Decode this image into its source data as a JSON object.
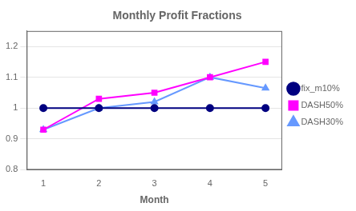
{
  "chart_data": {
    "type": "line",
    "title": "Monthly Profit Fractions",
    "xlabel": "Month",
    "x": [
      1,
      2,
      3,
      4,
      5
    ],
    "series": [
      {
        "name": "fix_m10%",
        "color": "#000080",
        "marker": "circle",
        "values": [
          1.0,
          1.0,
          1.0,
          1.0,
          1.0
        ]
      },
      {
        "name": "DASH50%",
        "color": "#FF00FF",
        "marker": "square",
        "values": [
          0.93,
          1.03,
          1.05,
          1.1,
          1.15
        ]
      },
      {
        "name": "DASH30%",
        "color": "#6699FF",
        "marker": "triangle",
        "values": [
          0.93,
          1.0,
          1.02,
          1.1,
          1.065
        ]
      }
    ],
    "xlim": [
      0.7,
      5.3
    ],
    "xticks": [
      1,
      2,
      3,
      4,
      5
    ],
    "ylim": [
      0.8,
      1.25
    ],
    "yticks": [
      0.8,
      0.9,
      1,
      1.1,
      1.2
    ],
    "grid": "y",
    "legend": "right"
  }
}
